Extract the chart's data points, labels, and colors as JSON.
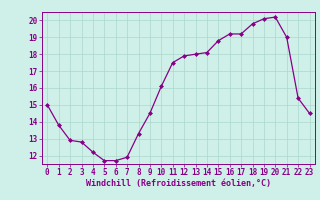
{
  "x": [
    0,
    1,
    2,
    3,
    4,
    5,
    6,
    7,
    8,
    9,
    10,
    11,
    12,
    13,
    14,
    15,
    16,
    17,
    18,
    19,
    20,
    21,
    22,
    23
  ],
  "y": [
    15.0,
    13.8,
    12.9,
    12.8,
    12.2,
    11.7,
    11.7,
    11.9,
    13.3,
    14.5,
    16.1,
    17.5,
    17.9,
    18.0,
    18.1,
    18.8,
    19.2,
    19.2,
    19.8,
    20.1,
    20.2,
    19.0,
    15.4,
    14.5
  ],
  "line_color": "#880088",
  "marker": "D",
  "marker_size": 2.0,
  "bg_color": "#cff0e8",
  "grid_color": "#aad8cc",
  "xlabel": "Windchill (Refroidissement éolien,°C)",
  "xlabel_color": "#880088",
  "tick_color": "#880088",
  "ylim": [
    11.5,
    20.5
  ],
  "xlim": [
    -0.5,
    23.5
  ],
  "yticks": [
    12,
    13,
    14,
    15,
    16,
    17,
    18,
    19,
    20
  ],
  "xticks": [
    0,
    1,
    2,
    3,
    4,
    5,
    6,
    7,
    8,
    9,
    10,
    11,
    12,
    13,
    14,
    15,
    16,
    17,
    18,
    19,
    20,
    21,
    22,
    23
  ],
  "xlabel_fontsize": 6.0,
  "tick_fontsize": 5.5
}
